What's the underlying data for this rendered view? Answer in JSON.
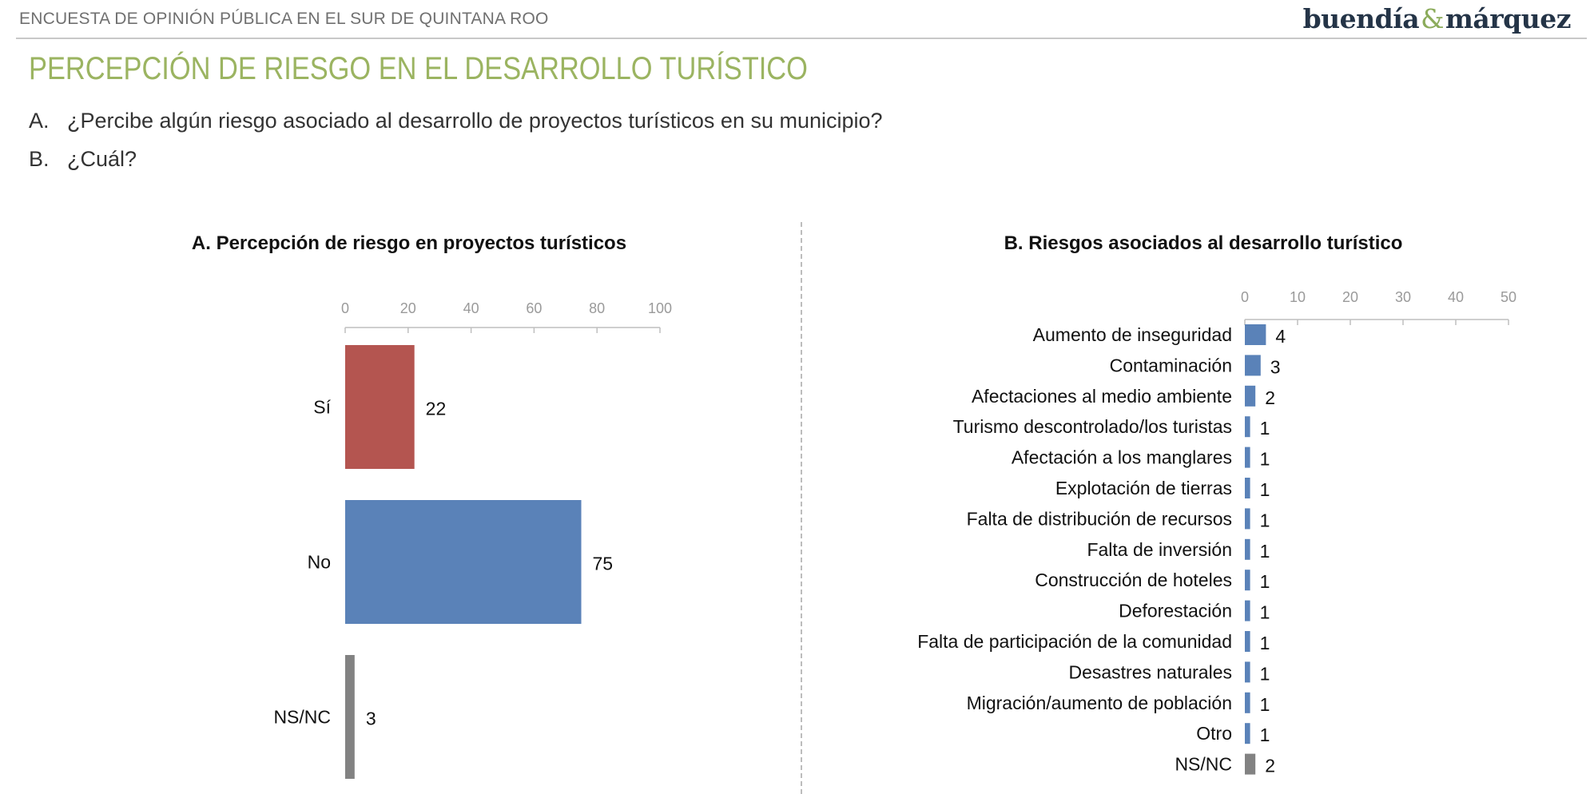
{
  "header": {
    "survey_label": "ENCUESTA DE OPINIÓN PÚBLICA EN EL SUR DE QUINTANA ROO",
    "logo_left": "buendía",
    "logo_amp": "&",
    "logo_right": "márquez"
  },
  "page_title": "PERCEPCIÓN DE RIESGO EN EL DESARROLLO TURÍSTICO",
  "questions": [
    {
      "letter": "A.",
      "text": "¿Percibe algún riesgo asociado al desarrollo de proyectos turísticos en su municipio?"
    },
    {
      "letter": "B.",
      "text": "¿Cuál?"
    }
  ],
  "colors": {
    "red": "#b45550",
    "blue": "#5a82b8",
    "gray": "#828282"
  },
  "chart_data": [
    {
      "type": "bar",
      "orientation": "horizontal",
      "title": "A. Percepción de riesgo en proyectos turísticos",
      "categories": [
        "Sí",
        "No",
        "NS/NC"
      ],
      "values": [
        22,
        75,
        3
      ],
      "bar_colors": [
        "#b45550",
        "#5a82b8",
        "#828282"
      ],
      "xlim": [
        0,
        100
      ],
      "ticks": [
        0,
        20,
        40,
        60,
        80,
        100
      ],
      "axis_position": "top",
      "grid": false
    },
    {
      "type": "bar",
      "orientation": "horizontal",
      "title": "B. Riesgos asociados al desarrollo turístico",
      "categories": [
        "Aumento de inseguridad",
        "Contaminación",
        "Afectaciones al medio ambiente",
        "Turismo descontrolado/los turistas",
        "Afectación a los manglares",
        "Explotación de tierras",
        "Falta de distribución de recursos",
        "Falta de inversión",
        "Construcción de hoteles",
        "Deforestación",
        "Falta de participación de la comunidad",
        "Desastres naturales",
        "Migración/aumento de población",
        "Otro",
        "NS/NC"
      ],
      "values": [
        4,
        3,
        2,
        1,
        1,
        1,
        1,
        1,
        1,
        1,
        1,
        1,
        1,
        1,
        2
      ],
      "bar_colors": [
        "#5a82b8",
        "#5a82b8",
        "#5a82b8",
        "#5a82b8",
        "#5a82b8",
        "#5a82b8",
        "#5a82b8",
        "#5a82b8",
        "#5a82b8",
        "#5a82b8",
        "#5a82b8",
        "#5a82b8",
        "#5a82b8",
        "#5a82b8",
        "#828282"
      ],
      "xlim": [
        0,
        50
      ],
      "ticks": [
        0,
        10,
        20,
        30,
        40,
        50
      ],
      "axis_position": "top",
      "grid": false
    }
  ]
}
